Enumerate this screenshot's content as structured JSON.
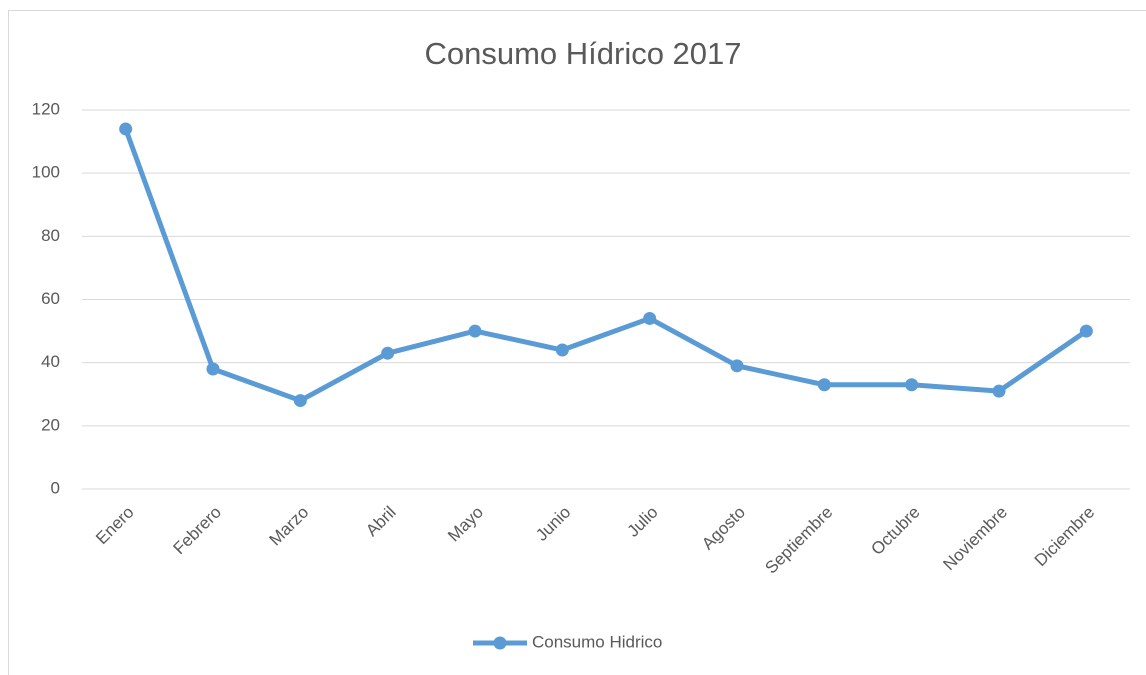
{
  "chart_data": {
    "type": "line",
    "title": "Consumo Hídrico 2017",
    "categories": [
      "Enero",
      "Febrero",
      "Marzo",
      "Abril",
      "Mayo",
      "Junio",
      "Julio",
      "Agosto",
      "Septiembre",
      "Octubre",
      "Noviembre",
      "Diciembre"
    ],
    "series": [
      {
        "name": "Consumo Hidrico",
        "color": "#5b9bd5",
        "values": [
          114,
          38,
          28,
          43,
          50,
          44,
          54,
          39,
          33,
          33,
          31,
          50
        ]
      }
    ],
    "ylim": [
      0,
      120
    ],
    "yticks": [
      0,
      20,
      40,
      60,
      80,
      100,
      120
    ],
    "grid": true,
    "legend": "bottom"
  }
}
